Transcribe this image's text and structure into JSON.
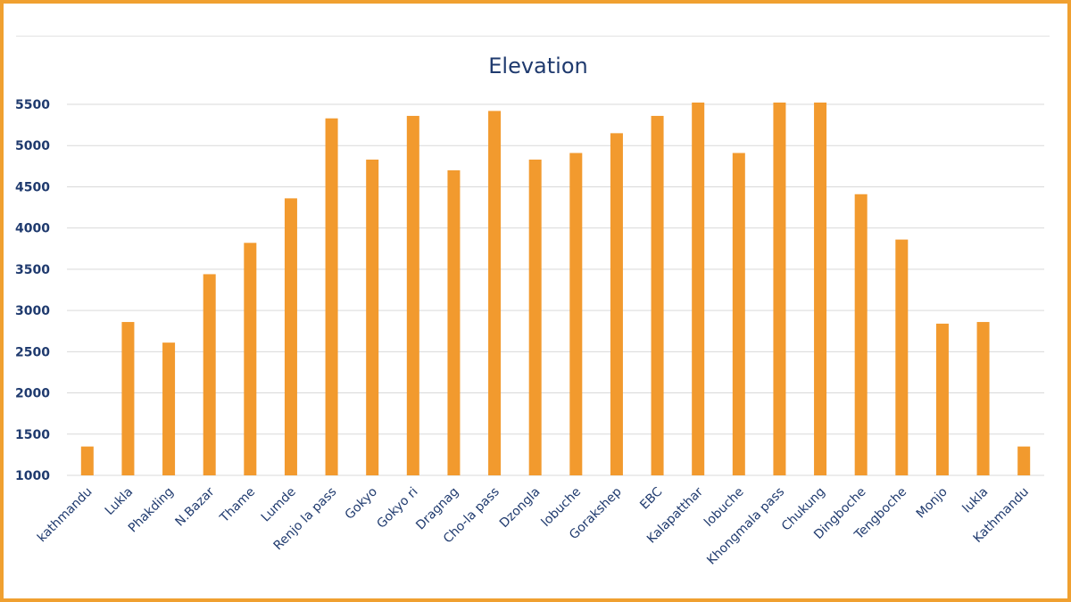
{
  "chart_data": {
    "type": "bar",
    "title": "Elevation",
    "xlabel": "",
    "ylabel": "",
    "ylim": [
      1000,
      5500
    ],
    "yticks": [
      1000,
      1500,
      2000,
      2500,
      3000,
      3500,
      4000,
      4500,
      5000,
      5500
    ],
    "grid": true,
    "legend": "none",
    "bar_color": "#f29a2e",
    "categories": [
      "kathmandu",
      "Lukla",
      "Phakding",
      "N.Bazar",
      "Thame",
      "Lumde",
      "Renjo la pass",
      "Gokyo",
      "Gokyo ri",
      "Dragnag",
      "Cho-la pass",
      "Dzongla",
      "lobuche",
      "Gorakshep",
      "EBC",
      "Kalapatthar",
      "lobuche",
      "Khongmala pass",
      "Chukung",
      "Dingboche",
      "Tengboche",
      "Monjo",
      "lukla",
      "Kathmandu"
    ],
    "values": [
      1350,
      2860,
      2610,
      3440,
      3820,
      4360,
      5330,
      4830,
      5360,
      4700,
      5420,
      4830,
      4910,
      5150,
      5360,
      5545,
      4910,
      5535,
      5550,
      4410,
      3860,
      2840,
      2860,
      1350
    ]
  }
}
